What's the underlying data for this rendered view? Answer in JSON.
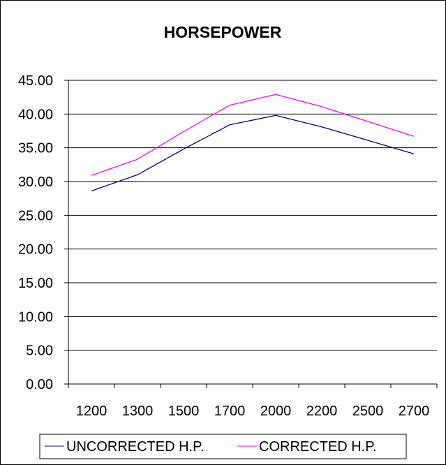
{
  "chart_data": {
    "type": "line",
    "title": "HORSEPOWER",
    "xlabel": "",
    "ylabel": "",
    "categories": [
      "1200",
      "1300",
      "1500",
      "1700",
      "2000",
      "2200",
      "2500",
      "2700"
    ],
    "series": [
      {
        "name": "UNCORRECTED H.P.",
        "color": "#000080",
        "values": [
          28.6,
          31.0,
          34.8,
          38.4,
          39.8,
          38.1,
          36.1,
          34.1
        ]
      },
      {
        "name": "CORRECTED H.P.",
        "color": "#ff00ff",
        "values": [
          30.9,
          33.3,
          37.4,
          41.3,
          42.9,
          41.1,
          38.9,
          36.7
        ]
      }
    ],
    "ylim": [
      0,
      45
    ],
    "yticks": [
      "0.00",
      "5.00",
      "10.00",
      "15.00",
      "20.00",
      "25.00",
      "30.00",
      "35.00",
      "40.00",
      "45.00"
    ],
    "ytick_values": [
      0,
      5,
      10,
      15,
      20,
      25,
      30,
      35,
      40,
      45
    ],
    "grid": true,
    "legend_position": "bottom"
  }
}
